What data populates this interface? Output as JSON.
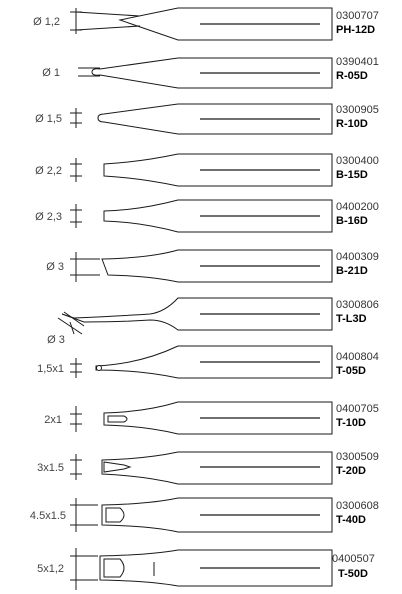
{
  "tips": [
    {
      "size": "Ø 1,2",
      "code": "0300707",
      "model": "PH-12D"
    },
    {
      "size": "Ø 1",
      "code": "0390401",
      "model": "R-05D"
    },
    {
      "size": "Ø 1,5",
      "code": "0300905",
      "model": "R-10D"
    },
    {
      "size": "Ø 2,2",
      "code": "0300400",
      "model": "B-15D"
    },
    {
      "size": "Ø 2,3",
      "code": "0400200",
      "model": "B-16D"
    },
    {
      "size": "Ø 3",
      "code": "0400309",
      "model": "B-21D"
    },
    {
      "size": "Ø 3",
      "code": "0300806",
      "model": "T-L3D"
    },
    {
      "size": "1,5x1",
      "code": "0400804",
      "model": "T-05D"
    },
    {
      "size": "2x1",
      "code": "0400705",
      "model": "T-10D"
    },
    {
      "size": "3x1.5",
      "code": "0300509",
      "model": "T-20D"
    },
    {
      "size": "4.5x1.5",
      "code": "0300608",
      "model": "T-40D"
    },
    {
      "size": "5x1,2",
      "code": "0400507",
      "model": "T-50D"
    }
  ]
}
